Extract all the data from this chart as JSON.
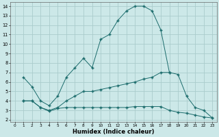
{
  "xlabel": "Humidex (Indice chaleur)",
  "background_color": "#cce8e8",
  "grid_color": "#aacccc",
  "line_color": "#1a6b6b",
  "xlim": [
    -0.5,
    23.5
  ],
  "ylim": [
    1.8,
    14.4
  ],
  "xticks": [
    0,
    1,
    2,
    3,
    4,
    5,
    6,
    7,
    8,
    9,
    10,
    11,
    12,
    13,
    14,
    15,
    16,
    17,
    18,
    19,
    20,
    21,
    22,
    23
  ],
  "yticks": [
    2,
    3,
    4,
    5,
    6,
    7,
    8,
    9,
    10,
    11,
    12,
    13,
    14
  ],
  "line1_x": [
    1,
    2,
    3,
    4,
    5,
    6,
    7,
    8,
    9,
    10,
    11,
    12,
    13,
    14,
    15,
    16,
    17,
    18
  ],
  "line1_y": [
    6.5,
    5.5,
    4.0,
    3.5,
    4.5,
    6.5,
    7.5,
    8.5,
    7.5,
    10.5,
    11.0,
    12.5,
    13.5,
    14.0,
    14.0,
    13.5,
    11.5,
    7.0
  ],
  "line2_x": [
    1,
    2,
    3,
    4,
    5,
    6,
    7,
    8,
    9,
    10,
    11,
    12,
    13,
    14,
    15,
    16,
    17,
    18,
    19,
    20,
    21,
    22,
    23
  ],
  "line2_y": [
    4.0,
    4.0,
    3.3,
    3.0,
    3.3,
    4.0,
    4.5,
    5.0,
    5.0,
    5.2,
    5.4,
    5.6,
    5.8,
    6.0,
    6.3,
    6.5,
    7.0,
    7.0,
    6.8,
    4.5,
    3.3,
    3.0,
    2.2
  ],
  "line3_x": [
    1,
    2,
    3,
    4,
    5,
    6,
    7,
    8,
    9,
    10,
    11,
    12,
    13,
    14,
    15,
    16,
    17,
    18,
    19,
    20,
    21,
    22,
    23
  ],
  "line3_y": [
    4.0,
    4.0,
    3.3,
    2.9,
    3.2,
    3.3,
    3.3,
    3.3,
    3.3,
    3.3,
    3.3,
    3.3,
    3.3,
    3.4,
    3.4,
    3.4,
    3.4,
    3.0,
    2.8,
    2.7,
    2.5,
    2.3,
    2.2
  ]
}
